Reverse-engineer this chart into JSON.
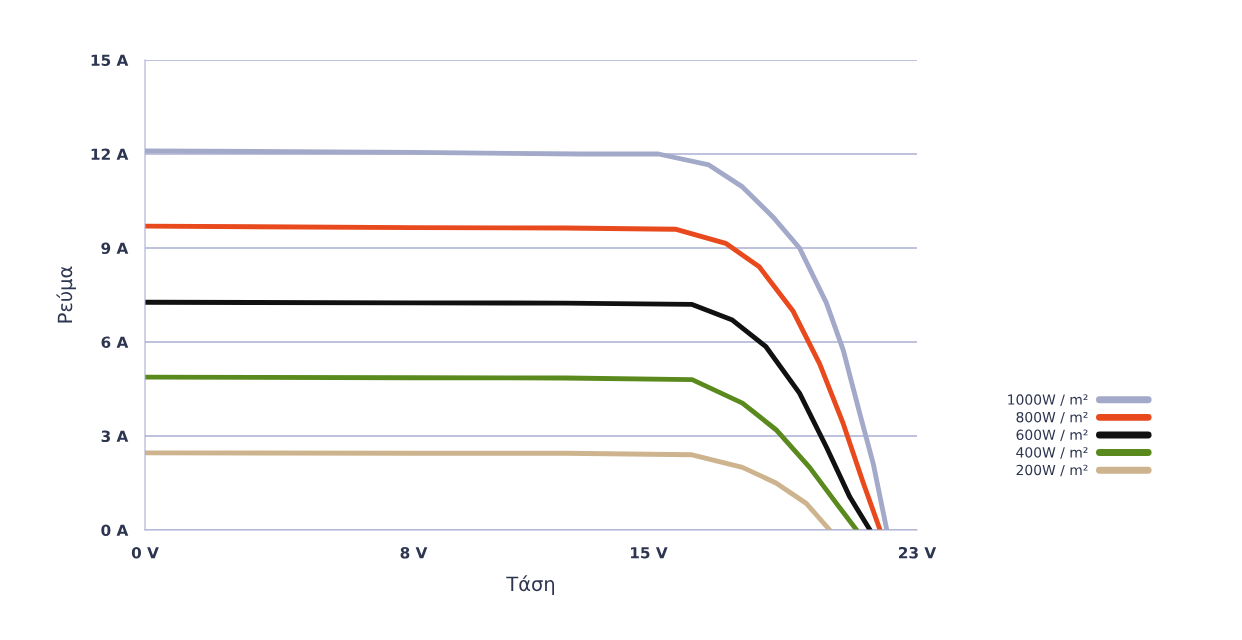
{
  "chart_data": {
    "type": "line",
    "xlabel": "Τάση",
    "ylabel": "Ρεύμα",
    "xlim": [
      0,
      23
    ],
    "ylim": [
      0,
      15
    ],
    "xticks": [
      {
        "value": 0,
        "label": "0 V"
      },
      {
        "value": 8,
        "label": "8 V"
      },
      {
        "value": 15,
        "label": "15 V"
      },
      {
        "value": 23,
        "label": "23 V"
      }
    ],
    "yticks": [
      {
        "value": 0,
        "label": "0 A"
      },
      {
        "value": 3,
        "label": "3 A"
      },
      {
        "value": 6,
        "label": "6 A"
      },
      {
        "value": 9,
        "label": "9 A"
      },
      {
        "value": 12,
        "label": "12 A"
      },
      {
        "value": 15,
        "label": "15 A"
      }
    ],
    "grid": "y",
    "legend": "right",
    "marker": "none",
    "line_style": "solid",
    "series": [
      {
        "name": "1000W / m²",
        "color": "#a3a9c9",
        "x": [
          0,
          8,
          13,
          15.3,
          16.8,
          17.8,
          18.7,
          19.5,
          20.3,
          20.8,
          21.3,
          21.7,
          22.1
        ],
        "values": [
          12.1,
          12.05,
          12.0,
          12.0,
          11.65,
          10.95,
          10.0,
          9.0,
          7.25,
          5.75,
          3.7,
          2.1,
          0
        ]
      },
      {
        "name": "800W / m²",
        "color": "#e8491d",
        "x": [
          0,
          8,
          12.5,
          15.8,
          17.3,
          18.3,
          19.3,
          20.1,
          20.8,
          21.4,
          21.9
        ],
        "values": [
          9.7,
          9.65,
          9.64,
          9.6,
          9.15,
          8.4,
          7.0,
          5.3,
          3.4,
          1.5,
          0
        ]
      },
      {
        "name": "600W / m²",
        "color": "#111111",
        "x": [
          0,
          8,
          12.5,
          16.3,
          17.5,
          18.5,
          19.5,
          20.3,
          21.0,
          21.6
        ],
        "values": [
          7.27,
          7.25,
          7.24,
          7.2,
          6.7,
          5.85,
          4.37,
          2.65,
          1.05,
          0
        ]
      },
      {
        "name": "400W / m²",
        "color": "#5a8a1e",
        "x": [
          0,
          8,
          12.5,
          16.3,
          17.8,
          18.8,
          19.8,
          20.6,
          21.2
        ],
        "values": [
          4.88,
          4.86,
          4.85,
          4.8,
          4.05,
          3.2,
          2.0,
          0.85,
          0
        ]
      },
      {
        "name": "200W / m²",
        "color": "#cdb48e",
        "x": [
          0,
          8,
          12.5,
          16.3,
          17.8,
          18.8,
          19.7,
          20.4
        ],
        "values": [
          2.46,
          2.45,
          2.45,
          2.4,
          2.0,
          1.5,
          0.85,
          0
        ]
      }
    ]
  }
}
